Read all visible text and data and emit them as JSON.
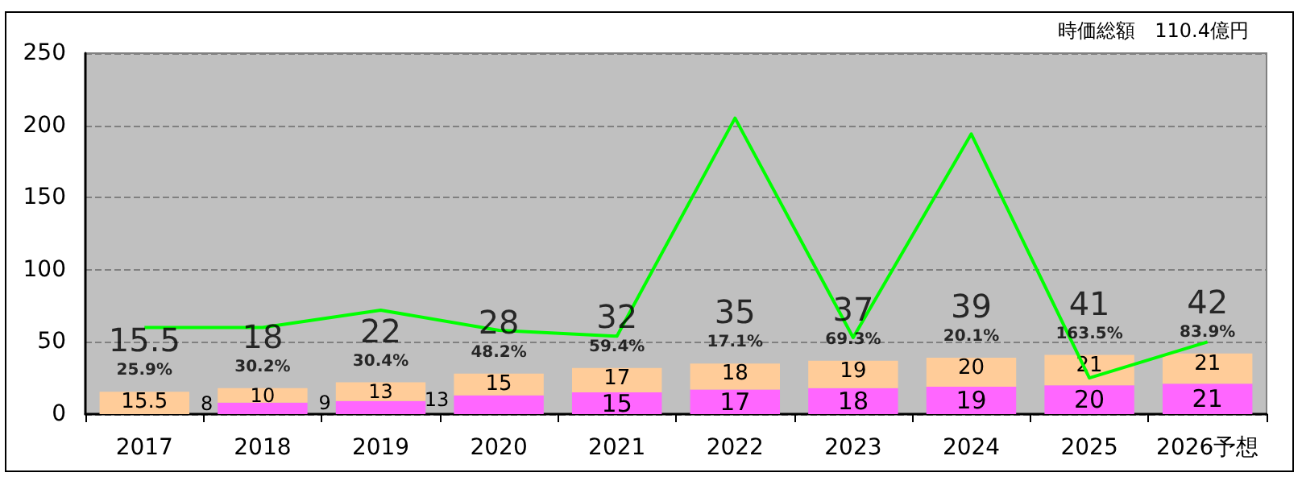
{
  "chart_data": {
    "type": "bar",
    "subtitle": "時価総額　110.4億円",
    "categories": [
      "2017",
      "2018",
      "2019",
      "2020",
      "2021",
      "2022",
      "2023",
      "2024",
      "2025",
      "2026予想"
    ],
    "stacked": true,
    "grid": "y",
    "ylim": [
      0,
      250
    ],
    "yticks": [
      0,
      50,
      100,
      150,
      200,
      250
    ],
    "series": [
      {
        "color": "#ff66ff",
        "values": [
          null,
          8,
          9,
          13,
          15,
          17,
          18,
          19,
          20,
          21
        ],
        "value_labels": [
          null,
          "8",
          "9",
          "13",
          "15",
          "17",
          "18",
          "19",
          "20",
          "21"
        ]
      },
      {
        "color": "#ffcc99",
        "values": [
          15.5,
          10,
          13,
          15,
          17,
          18,
          19,
          20,
          21,
          21
        ],
        "value_labels": [
          "15.5",
          "10",
          "13",
          "15",
          "17",
          "18",
          "19",
          "20",
          "21",
          "21"
        ]
      },
      {
        "type": "line",
        "color": "#00ff00",
        "values": [
          60,
          60,
          72,
          58,
          54,
          205,
          53,
          194,
          25,
          50
        ]
      }
    ],
    "totals": [
      "15.5",
      "18",
      "22",
      "28",
      "32",
      "35",
      "37",
      "39",
      "41",
      "42"
    ],
    "annotations": [
      {
        "text": "25.9%",
        "x": "2017",
        "y": 15.5
      },
      {
        "text": "30.2%",
        "x": "2018",
        "y": 18
      },
      {
        "text": "30.4%",
        "x": "2019",
        "y": 22
      },
      {
        "text": "48.2%",
        "x": "2020",
        "y": 28
      },
      {
        "text": "59.4%",
        "x": "2021",
        "y": 32
      },
      {
        "text": "17.1%",
        "x": "2022",
        "y": 35
      },
      {
        "text": "69.3%",
        "x": "2023",
        "y": 37
      },
      {
        "text": "20.1%",
        "x": "2024",
        "y": 39
      },
      {
        "text": "163.5%",
        "x": "2025",
        "y": 41
      },
      {
        "text": "83.9%",
        "x": "2026予想",
        "y": 42
      }
    ]
  }
}
